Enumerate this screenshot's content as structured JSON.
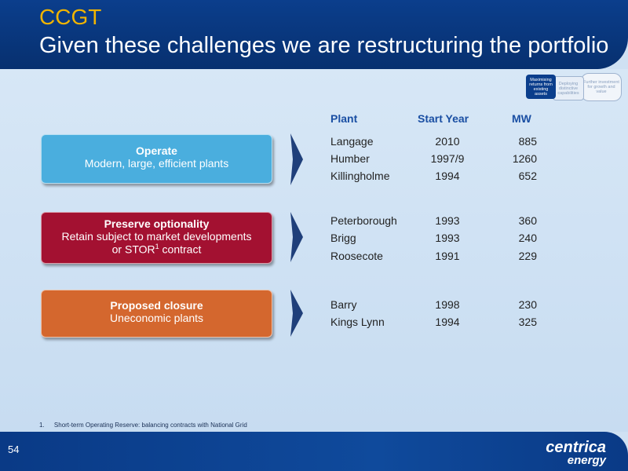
{
  "header": {
    "kicker": "CCGT",
    "title": "Given these challenges we are restructuring the portfolio"
  },
  "mini_diagram": {
    "steps": [
      "Maximising returns from existing assets",
      "Deploying distinctive capabilities",
      "Further investment for growth and value"
    ]
  },
  "table": {
    "headers": {
      "plant": "Plant",
      "start_year": "Start Year",
      "mw": "MW"
    },
    "rows": [
      {
        "plant": "Langage",
        "year": "2010",
        "mw": "885"
      },
      {
        "plant": "Humber",
        "year": "1997/9",
        "mw": "1260"
      },
      {
        "plant": "Killingholme",
        "year": "1994",
        "mw": "652"
      },
      {
        "plant": "Peterborough",
        "year": "1993",
        "mw": "360"
      },
      {
        "plant": "Brigg",
        "year": "1993",
        "mw": "240"
      },
      {
        "plant": "Roosecote",
        "year": "1991",
        "mw": "229"
      },
      {
        "plant": "Barry",
        "year": "1998",
        "mw": "230"
      },
      {
        "plant": "Kings Lynn",
        "year": "1994",
        "mw": "325"
      }
    ]
  },
  "categories": {
    "operate": {
      "heading": "Operate",
      "line1": "Modern, large, efficient plants"
    },
    "preserve": {
      "heading": "Preserve optionality",
      "line1": "Retain subject to market developments",
      "line2_pre": "or STOR",
      "line2_sup": "1",
      "line2_post": " contract"
    },
    "closure": {
      "heading": "Proposed closure",
      "line1": "Uneconomic plants"
    }
  },
  "footnote": {
    "number": "1.",
    "text": "Short-term Operating Reserve: balancing contracts with National Grid"
  },
  "footer": {
    "page_number": "54",
    "logo_line1": "centrica",
    "logo_line2": "energy"
  },
  "colors": {
    "navy": "#0b3e8c",
    "gold": "#f0b400",
    "operate": "#4aaede",
    "preserve": "#a31131",
    "closure": "#d4672e"
  }
}
